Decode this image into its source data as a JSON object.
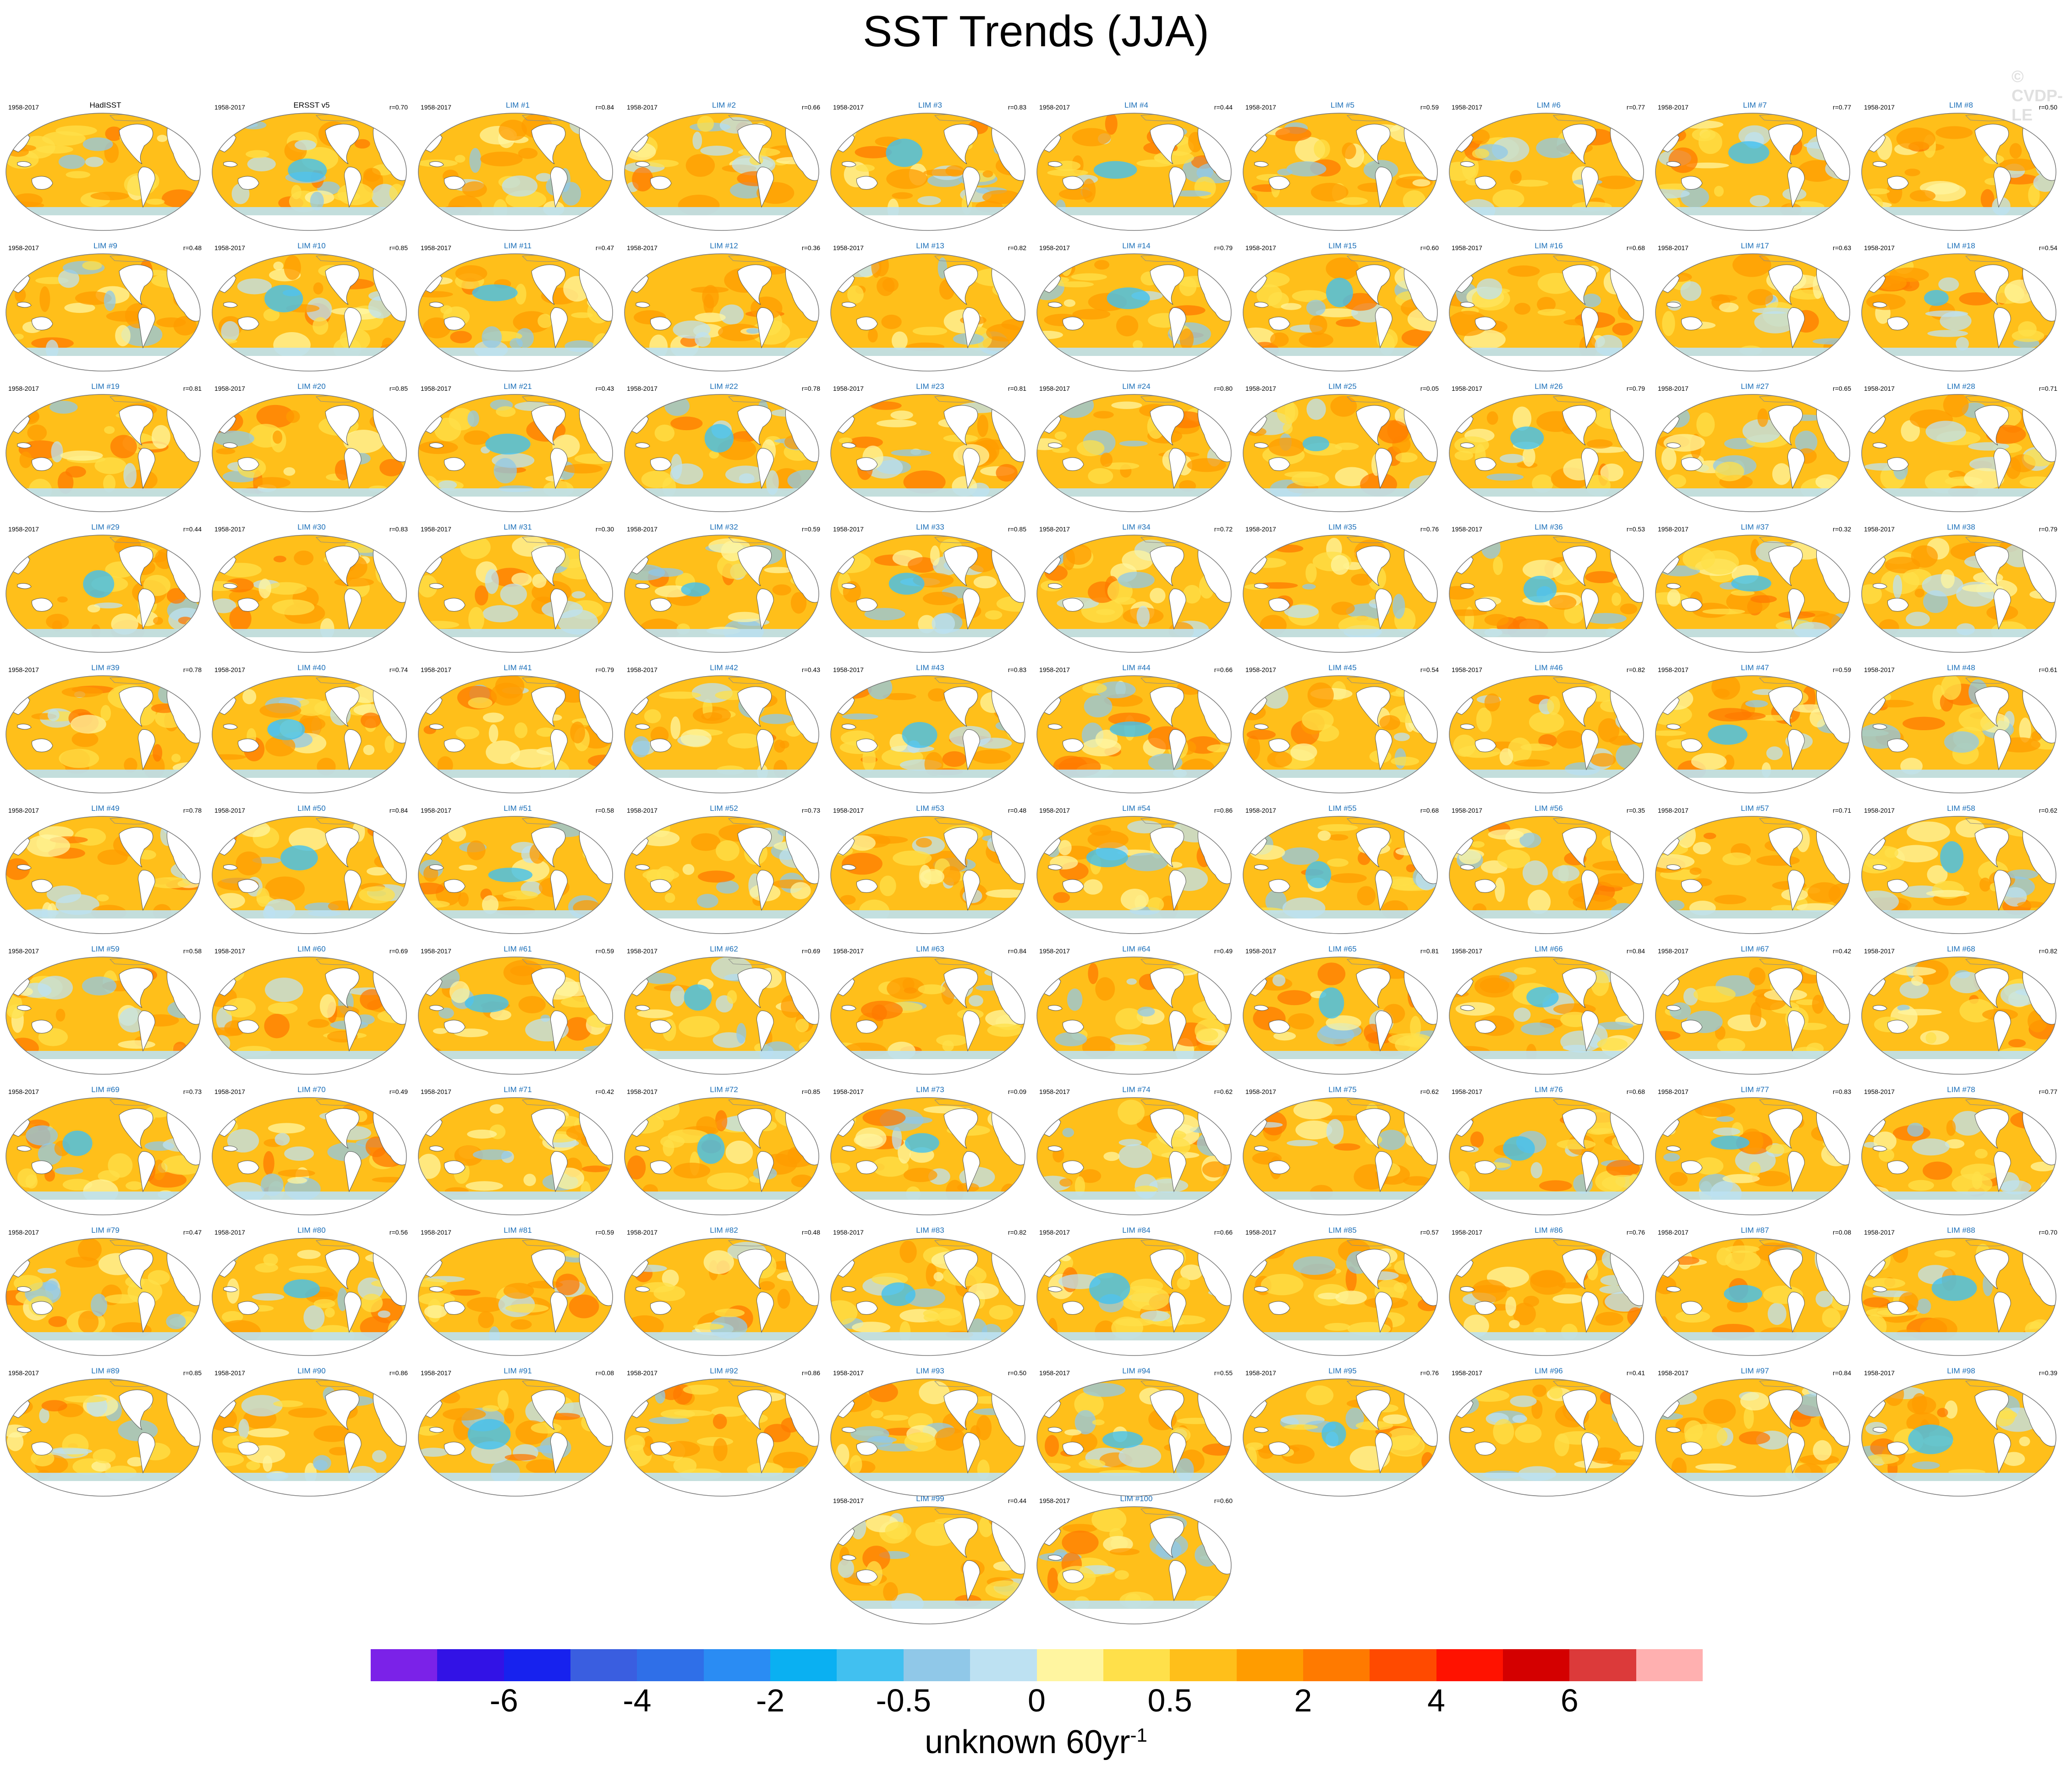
{
  "title": "SST Trends (JJA)",
  "watermark": "© CVDP-LE",
  "colorbar": {
    "colors": [
      "#7b22e8",
      "#3212e6",
      "#1722ee",
      "#3a5ee0",
      "#2f6fe8",
      "#2a8cf3",
      "#0ab0f2",
      "#41c0f0",
      "#90c8e8",
      "#bde1f2",
      "#fff5a0",
      "#ffe04a",
      "#ffbf1a",
      "#ff9c00",
      "#ff7a00",
      "#ff4a00",
      "#ff1200",
      "#d40000",
      "#dc3a3a",
      "#ffb0b0"
    ],
    "tick_labels": [
      "-6",
      "-4",
      "-2",
      "-0.5",
      "0",
      "0.5",
      "2",
      "4",
      "6"
    ],
    "units_main": "unknown 60yr",
    "units_exp": "-1"
  },
  "chart_data": {
    "type": "heatmap",
    "title": "SST Trends (JJA)",
    "description_units": "unknown 60yr-1",
    "levels": [
      -6,
      -5,
      -4,
      -3,
      -2,
      -1,
      -0.5,
      -0.25,
      0,
      0.25,
      0.5,
      1,
      2,
      3,
      4,
      5,
      6,
      7
    ],
    "panels": [
      {
        "name": "HadISST",
        "period": "1958-2017",
        "r": "",
        "obs": true
      },
      {
        "name": "ERSST v5",
        "period": "1958-2017",
        "r": "r=0.70",
        "obs": true
      },
      {
        "name": "LIM #1",
        "period": "1958-2017",
        "r": "r=0.84"
      },
      {
        "name": "LIM #2",
        "period": "1958-2017",
        "r": "r=0.66"
      },
      {
        "name": "LIM #3",
        "period": "1958-2017",
        "r": "r=0.83"
      },
      {
        "name": "LIM #4",
        "period": "1958-2017",
        "r": "r=0.44"
      },
      {
        "name": "LIM #5",
        "period": "1958-2017",
        "r": "r=0.59"
      },
      {
        "name": "LIM #6",
        "period": "1958-2017",
        "r": "r=0.77"
      },
      {
        "name": "LIM #7",
        "period": "1958-2017",
        "r": "r=0.77"
      },
      {
        "name": "LIM #8",
        "period": "1958-2017",
        "r": "r=0.50"
      },
      {
        "name": "LIM #9",
        "period": "1958-2017",
        "r": "r=0.48"
      },
      {
        "name": "LIM #10",
        "period": "1958-2017",
        "r": "r=0.85"
      },
      {
        "name": "LIM #11",
        "period": "1958-2017",
        "r": "r=0.47"
      },
      {
        "name": "LIM #12",
        "period": "1958-2017",
        "r": "r=0.36"
      },
      {
        "name": "LIM #13",
        "period": "1958-2017",
        "r": "r=0.82"
      },
      {
        "name": "LIM #14",
        "period": "1958-2017",
        "r": "r=0.79"
      },
      {
        "name": "LIM #15",
        "period": "1958-2017",
        "r": "r=0.60"
      },
      {
        "name": "LIM #16",
        "period": "1958-2017",
        "r": "r=0.68"
      },
      {
        "name": "LIM #17",
        "period": "1958-2017",
        "r": "r=0.63"
      },
      {
        "name": "LIM #18",
        "period": "1958-2017",
        "r": "r=0.54"
      },
      {
        "name": "LIM #19",
        "period": "1958-2017",
        "r": "r=0.81"
      },
      {
        "name": "LIM #20",
        "period": "1958-2017",
        "r": "r=0.85"
      },
      {
        "name": "LIM #21",
        "period": "1958-2017",
        "r": "r=0.43"
      },
      {
        "name": "LIM #22",
        "period": "1958-2017",
        "r": "r=0.78"
      },
      {
        "name": "LIM #23",
        "period": "1958-2017",
        "r": "r=0.81"
      },
      {
        "name": "LIM #24",
        "period": "1958-2017",
        "r": "r=0.80"
      },
      {
        "name": "LIM #25",
        "period": "1958-2017",
        "r": "r=0.05"
      },
      {
        "name": "LIM #26",
        "period": "1958-2017",
        "r": "r=0.79"
      },
      {
        "name": "LIM #27",
        "period": "1958-2017",
        "r": "r=0.65"
      },
      {
        "name": "LIM #28",
        "period": "1958-2017",
        "r": "r=0.71"
      },
      {
        "name": "LIM #29",
        "period": "1958-2017",
        "r": "r=0.44"
      },
      {
        "name": "LIM #30",
        "period": "1958-2017",
        "r": "r=0.83"
      },
      {
        "name": "LIM #31",
        "period": "1958-2017",
        "r": "r=0.30"
      },
      {
        "name": "LIM #32",
        "period": "1958-2017",
        "r": "r=0.59"
      },
      {
        "name": "LIM #33",
        "period": "1958-2017",
        "r": "r=0.85"
      },
      {
        "name": "LIM #34",
        "period": "1958-2017",
        "r": "r=0.72"
      },
      {
        "name": "LIM #35",
        "period": "1958-2017",
        "r": "r=0.76"
      },
      {
        "name": "LIM #36",
        "period": "1958-2017",
        "r": "r=0.53"
      },
      {
        "name": "LIM #37",
        "period": "1958-2017",
        "r": "r=0.32"
      },
      {
        "name": "LIM #38",
        "period": "1958-2017",
        "r": "r=0.79"
      },
      {
        "name": "LIM #39",
        "period": "1958-2017",
        "r": "r=0.78"
      },
      {
        "name": "LIM #40",
        "period": "1958-2017",
        "r": "r=0.74"
      },
      {
        "name": "LIM #41",
        "period": "1958-2017",
        "r": "r=0.79"
      },
      {
        "name": "LIM #42",
        "period": "1958-2017",
        "r": "r=0.43"
      },
      {
        "name": "LIM #43",
        "period": "1958-2017",
        "r": "r=0.83"
      },
      {
        "name": "LIM #44",
        "period": "1958-2017",
        "r": "r=0.66"
      },
      {
        "name": "LIM #45",
        "period": "1958-2017",
        "r": "r=0.54"
      },
      {
        "name": "LIM #46",
        "period": "1958-2017",
        "r": "r=0.82"
      },
      {
        "name": "LIM #47",
        "period": "1958-2017",
        "r": "r=0.59"
      },
      {
        "name": "LIM #48",
        "period": "1958-2017",
        "r": "r=0.61"
      },
      {
        "name": "LIM #49",
        "period": "1958-2017",
        "r": "r=0.78"
      },
      {
        "name": "LIM #50",
        "period": "1958-2017",
        "r": "r=0.84"
      },
      {
        "name": "LIM #51",
        "period": "1958-2017",
        "r": "r=0.58"
      },
      {
        "name": "LIM #52",
        "period": "1958-2017",
        "r": "r=0.73"
      },
      {
        "name": "LIM #53",
        "period": "1958-2017",
        "r": "r=0.48"
      },
      {
        "name": "LIM #54",
        "period": "1958-2017",
        "r": "r=0.86"
      },
      {
        "name": "LIM #55",
        "period": "1958-2017",
        "r": "r=0.68"
      },
      {
        "name": "LIM #56",
        "period": "1958-2017",
        "r": "r=0.35"
      },
      {
        "name": "LIM #57",
        "period": "1958-2017",
        "r": "r=0.71"
      },
      {
        "name": "LIM #58",
        "period": "1958-2017",
        "r": "r=0.62"
      },
      {
        "name": "LIM #59",
        "period": "1958-2017",
        "r": "r=0.58"
      },
      {
        "name": "LIM #60",
        "period": "1958-2017",
        "r": "r=0.69"
      },
      {
        "name": "LIM #61",
        "period": "1958-2017",
        "r": "r=0.59"
      },
      {
        "name": "LIM #62",
        "period": "1958-2017",
        "r": "r=0.69"
      },
      {
        "name": "LIM #63",
        "period": "1958-2017",
        "r": "r=0.84"
      },
      {
        "name": "LIM #64",
        "period": "1958-2017",
        "r": "r=0.49"
      },
      {
        "name": "LIM #65",
        "period": "1958-2017",
        "r": "r=0.81"
      },
      {
        "name": "LIM #66",
        "period": "1958-2017",
        "r": "r=0.84"
      },
      {
        "name": "LIM #67",
        "period": "1958-2017",
        "r": "r=0.42"
      },
      {
        "name": "LIM #68",
        "period": "1958-2017",
        "r": "r=0.82"
      },
      {
        "name": "LIM #69",
        "period": "1958-2017",
        "r": "r=0.73"
      },
      {
        "name": "LIM #70",
        "period": "1958-2017",
        "r": "r=0.49"
      },
      {
        "name": "LIM #71",
        "period": "1958-2017",
        "r": "r=0.42"
      },
      {
        "name": "LIM #72",
        "period": "1958-2017",
        "r": "r=0.85"
      },
      {
        "name": "LIM #73",
        "period": "1958-2017",
        "r": "r=0.09"
      },
      {
        "name": "LIM #74",
        "period": "1958-2017",
        "r": "r=0.62"
      },
      {
        "name": "LIM #75",
        "period": "1958-2017",
        "r": "r=0.62"
      },
      {
        "name": "LIM #76",
        "period": "1958-2017",
        "r": "r=0.68"
      },
      {
        "name": "LIM #77",
        "period": "1958-2017",
        "r": "r=0.83"
      },
      {
        "name": "LIM #78",
        "period": "1958-2017",
        "r": "r=0.77"
      },
      {
        "name": "LIM #79",
        "period": "1958-2017",
        "r": "r=0.47"
      },
      {
        "name": "LIM #80",
        "period": "1958-2017",
        "r": "r=0.56"
      },
      {
        "name": "LIM #81",
        "period": "1958-2017",
        "r": "r=0.59"
      },
      {
        "name": "LIM #82",
        "period": "1958-2017",
        "r": "r=0.48"
      },
      {
        "name": "LIM #83",
        "period": "1958-2017",
        "r": "r=0.82"
      },
      {
        "name": "LIM #84",
        "period": "1958-2017",
        "r": "r=0.66"
      },
      {
        "name": "LIM #85",
        "period": "1958-2017",
        "r": "r=0.57"
      },
      {
        "name": "LIM #86",
        "period": "1958-2017",
        "r": "r=0.76"
      },
      {
        "name": "LIM #87",
        "period": "1958-2017",
        "r": "r=0.08"
      },
      {
        "name": "LIM #88",
        "period": "1958-2017",
        "r": "r=0.70"
      },
      {
        "name": "LIM #89",
        "period": "1958-2017",
        "r": "r=0.85"
      },
      {
        "name": "LIM #90",
        "period": "1958-2017",
        "r": "r=0.86"
      },
      {
        "name": "LIM #91",
        "period": "1958-2017",
        "r": "r=0.08"
      },
      {
        "name": "LIM #92",
        "period": "1958-2017",
        "r": "r=0.86"
      },
      {
        "name": "LIM #93",
        "period": "1958-2017",
        "r": "r=0.50"
      },
      {
        "name": "LIM #94",
        "period": "1958-2017",
        "r": "r=0.55"
      },
      {
        "name": "LIM #95",
        "period": "1958-2017",
        "r": "r=0.76"
      },
      {
        "name": "LIM #96",
        "period": "1958-2017",
        "r": "r=0.41"
      },
      {
        "name": "LIM #97",
        "period": "1958-2017",
        "r": "r=0.84"
      },
      {
        "name": "LIM #98",
        "period": "1958-2017",
        "r": "r=0.39"
      },
      {
        "name": "LIM #99",
        "period": "1958-2017",
        "r": "r=0.44"
      },
      {
        "name": "LIM #100",
        "period": "1958-2017",
        "r": "r=0.60"
      }
    ]
  }
}
